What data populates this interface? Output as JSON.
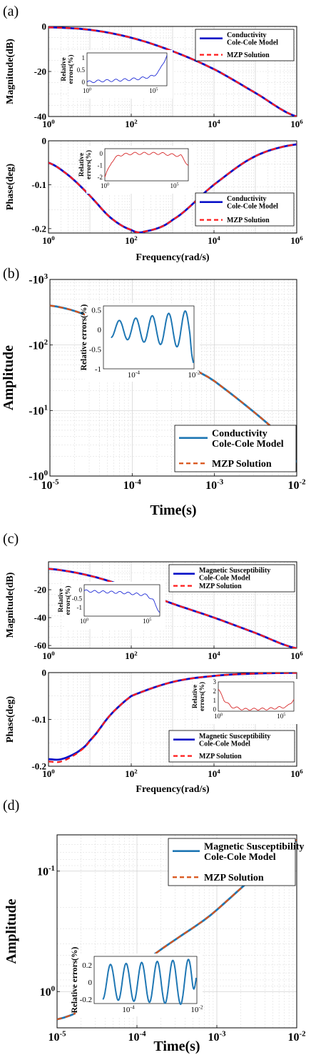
{
  "colors": {
    "blue": "#0a12c8",
    "red_dash": "#ff1a1a",
    "teal": "#1f77b4",
    "orange_dash": "#d95319",
    "inset_blue": "#1f2bd6",
    "inset_red": "#d62728",
    "grid": "#d0d0d0"
  },
  "panel_labels": [
    "(a)",
    "(b)",
    "(c)",
    "(d)"
  ],
  "chart_data": [
    {
      "id": "a-magnitude",
      "type": "line",
      "panel_label": "(a)",
      "ylabel": "Magnitude(dB)",
      "xscale": "log",
      "xlim": [
        1,
        1000000
      ],
      "ylim": [
        -40,
        0
      ],
      "x_ticks": [
        "10^0",
        "10^2",
        "10^4",
        "10^6"
      ],
      "y_ticks": [
        "0",
        "-20",
        "-40"
      ],
      "grid": true,
      "legend_position": "top-right",
      "legend": [
        "Conductivity\nCole-Cole Model",
        "MZP Solution"
      ],
      "series": [
        {
          "name": "Conductivity Cole-Cole Model",
          "style": "solid",
          "color": "blue",
          "x": [
            1,
            10,
            100,
            1000,
            10000,
            100000,
            1000000
          ],
          "y": [
            -0.4,
            -1.5,
            -5,
            -11,
            -19,
            -29.5,
            -40
          ]
        },
        {
          "name": "MZP Solution",
          "style": "dashed",
          "color": "red_dash",
          "x": [
            1,
            10,
            100,
            1000,
            10000,
            100000,
            1000000
          ],
          "y": [
            -0.4,
            -1.5,
            -5,
            -11,
            -19,
            -29.5,
            -40
          ]
        }
      ],
      "inset": {
        "ylabel": "Relative\nerrors(%)",
        "xscale": "log",
        "xlim": [
          1,
          1000000
        ],
        "ylim": [
          -0.15,
          1.2
        ],
        "x_ticks": [
          "10^0",
          "10^5"
        ],
        "y_ticks": [
          "1",
          "0.5",
          "0"
        ],
        "x": [
          1,
          10,
          100,
          1000,
          10000,
          100000,
          300000,
          1000000
        ],
        "y": [
          0,
          0.05,
          0.07,
          0.1,
          0.15,
          0.25,
          0.5,
          1.1
        ],
        "color": "inset_blue"
      }
    },
    {
      "id": "a-phase",
      "type": "line",
      "ylabel": "Phase(deg)",
      "xlabel": "Frequency(rad/s)",
      "xscale": "log",
      "xlim": [
        1,
        1000000
      ],
      "ylim": [
        -0.21,
        0
      ],
      "x_ticks": [
        "10^0",
        "10^2",
        "10^4",
        "10^6"
      ],
      "y_ticks": [
        "0",
        "-0.1",
        "-0.2"
      ],
      "grid": true,
      "legend_position": "bottom-right",
      "legend": [
        "Conductivity\nCole-Cole Model",
        "MZP Solution"
      ],
      "series": [
        {
          "name": "Conductivity Cole-Cole Model",
          "style": "solid",
          "color": "blue",
          "x": [
            1,
            3.16,
            10,
            31.6,
            100,
            200,
            1000,
            10000,
            100000,
            1000000
          ],
          "y": [
            -0.05,
            -0.08,
            -0.125,
            -0.175,
            -0.203,
            -0.207,
            -0.18,
            -0.1,
            -0.035,
            -0.008
          ]
        },
        {
          "name": "MZP Solution",
          "style": "dashed",
          "color": "red_dash",
          "x": [
            1,
            3.16,
            10,
            31.6,
            100,
            200,
            1000,
            10000,
            100000,
            1000000
          ],
          "y": [
            -0.05,
            -0.08,
            -0.125,
            -0.175,
            -0.203,
            -0.207,
            -0.18,
            -0.1,
            -0.035,
            -0.008
          ]
        }
      ],
      "inset": {
        "ylabel": "Relative\nerrors(%)",
        "xscale": "log",
        "xlim": [
          1,
          1000000
        ],
        "ylim": [
          -2.3,
          0.4
        ],
        "x_ticks": [
          "10^0",
          "10^5"
        ],
        "y_ticks": [
          "0",
          "-1",
          "-2"
        ],
        "x": [
          1,
          3,
          10,
          100,
          10000,
          300000,
          1000000
        ],
        "y": [
          -2,
          -0.7,
          -0.15,
          0,
          0,
          -0.2,
          -1
        ],
        "color": "inset_red"
      }
    },
    {
      "id": "b-time",
      "type": "line",
      "panel_label": "(b)",
      "ylabel": "Amplitude",
      "xlabel": "Time(s)",
      "xscale": "log",
      "yscale": "log",
      "xlim": [
        1e-05,
        0.01
      ],
      "ylim": [
        -1000,
        -1
      ],
      "x_ticks": [
        "10^-5",
        "10^-4",
        "10^-3",
        "10^-2"
      ],
      "y_ticks": [
        "-10^0",
        "-10^1",
        "-10^2",
        "-10^3"
      ],
      "grid": true,
      "legend_position": "bottom-right",
      "legend": [
        "Conductivity\nCole-Cole Model",
        "MZP Solution"
      ],
      "series": [
        {
          "name": "Conductivity Cole-Cole Model",
          "style": "solid",
          "color": "teal",
          "x": [
            1e-05,
            0.0001,
            0.001,
            0.01
          ],
          "y": [
            -400,
            -120,
            -28,
            -1.6
          ]
        },
        {
          "name": "MZP Solution",
          "style": "dashed",
          "color": "orange_dash",
          "x": [
            1e-05,
            0.0001,
            0.001,
            0.01
          ],
          "y": [
            -400,
            -120,
            -28,
            -1.6
          ]
        }
      ],
      "inset": {
        "ylabel": "Relative errors(%)",
        "xscale": "log",
        "xlim": [
          1e-05,
          0.01
        ],
        "ylim": [
          -1,
          0.6
        ],
        "x_ticks": [
          "10^-4",
          "10^-2"
        ],
        "y_ticks": [
          "0.5",
          "0",
          "-0.5",
          "-1"
        ],
        "oscillation": {
          "cycles": 5,
          "amplitude_start": 0.2,
          "amplitude_end": 0.5,
          "end_value": -0.85
        },
        "color": "teal"
      }
    },
    {
      "id": "c-magnitude",
      "type": "line",
      "panel_label": "(c)",
      "ylabel": "Magnitude(dB)",
      "xscale": "log",
      "xlim": [
        1,
        1000000
      ],
      "ylim": [
        -62,
        0
      ],
      "x_ticks": [
        "10^0",
        "10^2",
        "10^4",
        "10^6"
      ],
      "y_ticks": [
        "-20",
        "-40",
        "-60"
      ],
      "grid": true,
      "legend_position": "top-right",
      "legend": [
        "Magnetic Susceptibility\nCole-Cole Model",
        "MZP Solution"
      ],
      "series": [
        {
          "name": "Magnetic Susceptibility Cole-Cole Model",
          "style": "solid",
          "color": "blue",
          "x": [
            1,
            10,
            100,
            1000,
            10000,
            100000,
            1000000
          ],
          "y": [
            -5,
            -10,
            -19,
            -30,
            -40,
            -51,
            -62
          ]
        },
        {
          "name": "MZP Solution",
          "style": "dashed",
          "color": "red_dash",
          "x": [
            1,
            10,
            100,
            1000,
            10000,
            100000,
            1000000
          ],
          "y": [
            -5,
            -10,
            -19,
            -30,
            -40,
            -51,
            -62
          ]
        }
      ],
      "inset": {
        "ylabel": "Relative\nerrors(%)",
        "xscale": "log",
        "xlim": [
          1,
          1000000
        ],
        "ylim": [
          -1.5,
          0.3
        ],
        "x_ticks": [
          "10^0",
          "10^5"
        ],
        "y_ticks": [
          "0",
          "-0.5",
          "-1"
        ],
        "x": [
          1,
          10,
          1000,
          100000,
          300000,
          1000000
        ],
        "y": [
          -0.05,
          -0.1,
          -0.15,
          -0.3,
          -0.6,
          -1.3
        ],
        "color": "inset_blue"
      }
    },
    {
      "id": "c-phase",
      "type": "line",
      "ylabel": "Phase(deg)",
      "xlabel": "Frequency(rad/s)",
      "xscale": "log",
      "xlim": [
        1,
        1000000
      ],
      "ylim": [
        -0.2,
        0
      ],
      "x_ticks": [
        "10^0",
        "10^2",
        "10^4",
        "10^6"
      ],
      "y_ticks": [
        "0",
        "-0.1",
        "-0.2"
      ],
      "grid": true,
      "legend_position": "bottom-right",
      "legend": [
        "Magnetic Susceptibility\nCole-Cole Model",
        "MZP Solution"
      ],
      "series": [
        {
          "name": "Magnetic Susceptibility Cole-Cole Model",
          "style": "solid",
          "color": "blue",
          "x": [
            1,
            2,
            5,
            10,
            31.6,
            100,
            1000,
            10000,
            100000,
            1000000
          ],
          "y": [
            -0.185,
            -0.185,
            -0.17,
            -0.145,
            -0.09,
            -0.05,
            -0.02,
            -0.007,
            -0.002,
            -0.0005
          ]
        },
        {
          "name": "MZP Solution",
          "style": "dashed",
          "color": "red_dash",
          "x": [
            1,
            2,
            5,
            10,
            31.6,
            100,
            1000,
            10000,
            100000,
            1000000
          ],
          "y": [
            -0.19,
            -0.19,
            -0.172,
            -0.146,
            -0.09,
            -0.05,
            -0.02,
            -0.007,
            -0.002,
            -0.0005
          ]
        }
      ],
      "inset": {
        "ylabel": "Relative\nerrors(%)",
        "xscale": "log",
        "xlim": [
          1,
          1000000
        ],
        "ylim": [
          -0.2,
          3
        ],
        "x_ticks": [
          "10^0",
          "10^5"
        ],
        "y_ticks": [
          "3",
          "2",
          "1",
          "0"
        ],
        "x": [
          1,
          3,
          10,
          100,
          10000,
          300000,
          1000000
        ],
        "y": [
          2.2,
          1,
          0.3,
          0,
          0.05,
          0.3,
          1.1
        ],
        "color": "inset_red"
      }
    },
    {
      "id": "d-time",
      "type": "line",
      "panel_label": "(d)",
      "ylabel": "Amplitude",
      "xlabel": "Time(s)",
      "xscale": "log",
      "yscale": "log",
      "xlim": [
        1e-05,
        0.01
      ],
      "ylim": [
        0.05,
        2
      ],
      "x_ticks": [
        "10^-5",
        "10^-4",
        "10^-3",
        "10^-2"
      ],
      "y_ticks": [
        "10^0",
        "10^-1"
      ],
      "grid": true,
      "legend_position": "top-right",
      "legend": [
        "Magnetic Susceptibility\nCole-Cole Model",
        "MZP Solution"
      ],
      "series": [
        {
          "name": "Magnetic Susceptibility Cole-Cole Model",
          "style": "solid",
          "color": "teal",
          "x": [
            1e-05,
            0.0001,
            0.001,
            0.01
          ],
          "y": [
            1.7,
            0.63,
            0.21,
            0.055
          ]
        },
        {
          "name": "MZP Solution",
          "style": "dashed",
          "color": "orange_dash",
          "x": [
            1e-05,
            0.0001,
            0.001,
            0.01
          ],
          "y": [
            1.7,
            0.63,
            0.21,
            0.055
          ]
        }
      ],
      "inset": {
        "ylabel": "Relative errors(%)",
        "xscale": "log",
        "xlim": [
          1e-05,
          0.01
        ],
        "ylim": [
          -0.25,
          0.3
        ],
        "x_ticks": [
          "10^-4",
          "10^-2"
        ],
        "y_ticks": [
          "0.2",
          "0",
          "-0.2"
        ],
        "oscillation": {
          "cycles": 6,
          "amplitude_start": 0.2,
          "amplitude_end": 0.27,
          "end_value": 0.05
        },
        "color": "teal"
      }
    }
  ]
}
